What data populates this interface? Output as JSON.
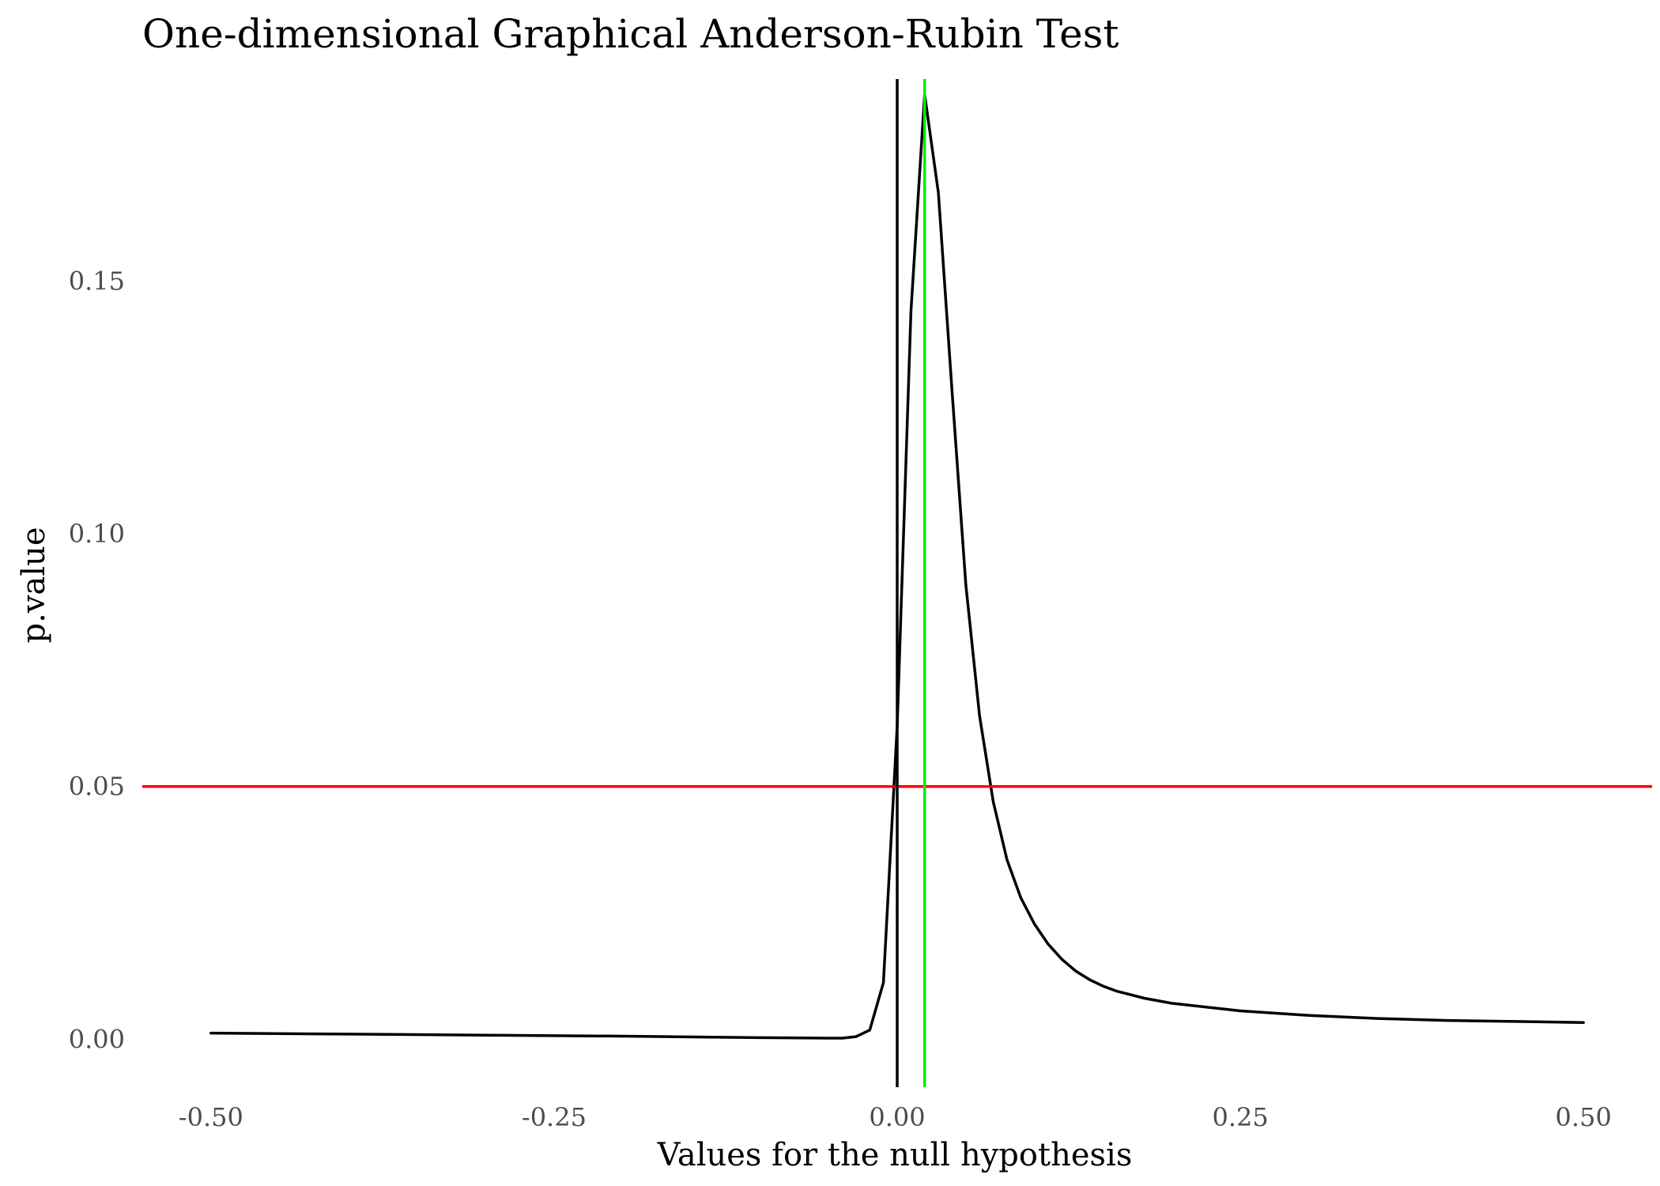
{
  "chart_data": {
    "type": "line",
    "title": "One-dimensional Graphical Anderson-Rubin Test",
    "xlabel": "Values for the null hypothesis",
    "ylabel": "p.value",
    "xlim": [
      -0.55,
      0.55
    ],
    "ylim": [
      -0.0095,
      0.19
    ],
    "x_ticks": [
      -0.5,
      -0.25,
      0.0,
      0.25,
      0.5
    ],
    "x_tick_labels": [
      "-0.50",
      "-0.25",
      "0.00",
      "0.25",
      "0.50"
    ],
    "y_ticks": [
      0.0,
      0.05,
      0.1,
      0.15
    ],
    "y_tick_labels": [
      "0.00",
      "0.05",
      "0.10",
      "0.15"
    ],
    "grid": false,
    "legend": "none",
    "series": [
      {
        "color": "#000000",
        "x": [
          -0.5,
          -0.4,
          -0.3,
          -0.2,
          -0.1,
          -0.05,
          -0.04,
          -0.03,
          -0.02,
          -0.01,
          0.0,
          0.01,
          0.02,
          0.03,
          0.04,
          0.05,
          0.06,
          0.07,
          0.08,
          0.09,
          0.1,
          0.11,
          0.12,
          0.13,
          0.14,
          0.15,
          0.16,
          0.18,
          0.2,
          0.25,
          0.3,
          0.35,
          0.4,
          0.45,
          0.5
        ],
        "y": [
          0.0012,
          0.001,
          0.0008,
          0.0006,
          0.0003,
          0.0002,
          0.0002,
          0.0005,
          0.0018,
          0.0112,
          0.062,
          0.144,
          0.187,
          0.1675,
          0.128,
          0.09,
          0.064,
          0.047,
          0.0355,
          0.028,
          0.0228,
          0.0188,
          0.0158,
          0.0135,
          0.0118,
          0.0105,
          0.0095,
          0.0081,
          0.0071,
          0.0056,
          0.0047,
          0.0041,
          0.0037,
          0.0035,
          0.0033
        ]
      }
    ],
    "reference_lines": [
      {
        "orientation": "horizontal",
        "value": 0.05,
        "color": "#ff0000"
      },
      {
        "orientation": "vertical",
        "value": 0.0,
        "color": "#000000"
      },
      {
        "orientation": "vertical",
        "value": 0.02,
        "color": "#00ee00"
      }
    ]
  }
}
